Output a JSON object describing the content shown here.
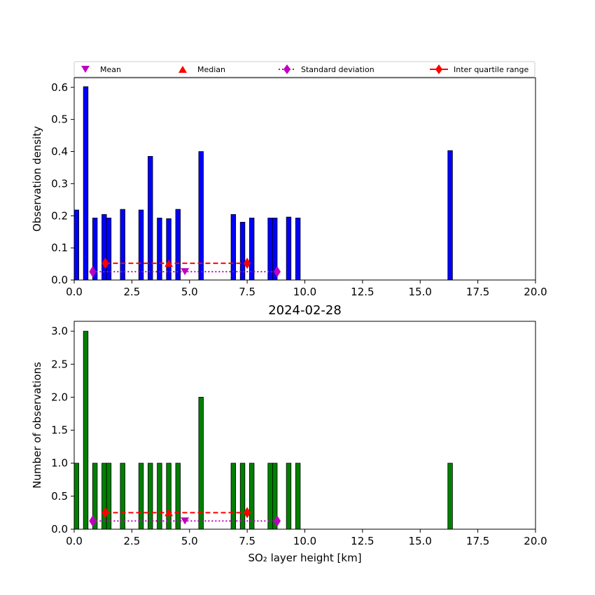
{
  "legend": {
    "mean": "Mean",
    "median": "Median",
    "std": "Standard deviation",
    "iqr": "Inter quartile range"
  },
  "chart_data": [
    {
      "type": "bar",
      "title": "",
      "xlabel": "",
      "ylabel": "Observation density",
      "xlim": [
        0,
        20
      ],
      "ylim": [
        0,
        0.63
      ],
      "xticks": [
        "0.0",
        "2.5",
        "5.0",
        "7.5",
        "10.0",
        "12.5",
        "15.0",
        "17.5",
        "20.0"
      ],
      "yticks": [
        "0.0",
        "0.1",
        "0.2",
        "0.3",
        "0.4",
        "0.5",
        "0.6"
      ],
      "bar_width": 0.2,
      "color": "#0000ff",
      "x": [
        0.1,
        0.5,
        0.9,
        1.3,
        1.5,
        2.1,
        2.9,
        3.3,
        3.7,
        4.1,
        4.5,
        5.5,
        6.9,
        7.3,
        7.7,
        8.5,
        8.7,
        9.3,
        9.7,
        16.3
      ],
      "values": [
        0.218,
        0.602,
        0.193,
        0.204,
        0.193,
        0.22,
        0.218,
        0.385,
        0.193,
        0.191,
        0.22,
        0.4,
        0.204,
        0.18,
        0.193,
        0.193,
        0.193,
        0.196,
        0.193,
        0.403
      ],
      "mean": 4.8,
      "median": 4.1,
      "std_range": [
        0.8,
        8.8
      ],
      "iqr_range": [
        1.35,
        7.5
      ],
      "stat_y": {
        "median": 0.052,
        "iqr": 0.052,
        "mean": 0.026,
        "std": 0.026
      },
      "legend_position": "top"
    },
    {
      "type": "bar",
      "title": "2024-02-28",
      "xlabel": "SO₂ layer height [km]",
      "ylabel": "Number of observations",
      "xlim": [
        0,
        20
      ],
      "ylim": [
        0,
        3.15
      ],
      "xticks": [
        "0.0",
        "2.5",
        "5.0",
        "7.5",
        "10.0",
        "12.5",
        "15.0",
        "17.5",
        "20.0"
      ],
      "yticks": [
        "0.0",
        "0.5",
        "1.0",
        "1.5",
        "2.0",
        "2.5",
        "3.0"
      ],
      "bar_width": 0.2,
      "color": "#008000",
      "x": [
        0.1,
        0.5,
        0.9,
        1.3,
        1.5,
        2.1,
        2.9,
        3.3,
        3.7,
        4.1,
        4.5,
        5.5,
        6.9,
        7.3,
        7.7,
        8.5,
        8.7,
        9.3,
        9.7,
        16.3
      ],
      "values": [
        1,
        3,
        1,
        1,
        1,
        1,
        1,
        1,
        1,
        1,
        1,
        2,
        1,
        1,
        1,
        1,
        1,
        1,
        1,
        1
      ],
      "mean": 4.8,
      "median": 4.1,
      "std_range": [
        0.8,
        8.8
      ],
      "iqr_range": [
        1.35,
        7.5
      ],
      "stat_y": {
        "median": 0.25,
        "iqr": 0.25,
        "mean": 0.125,
        "std": 0.125
      }
    }
  ]
}
